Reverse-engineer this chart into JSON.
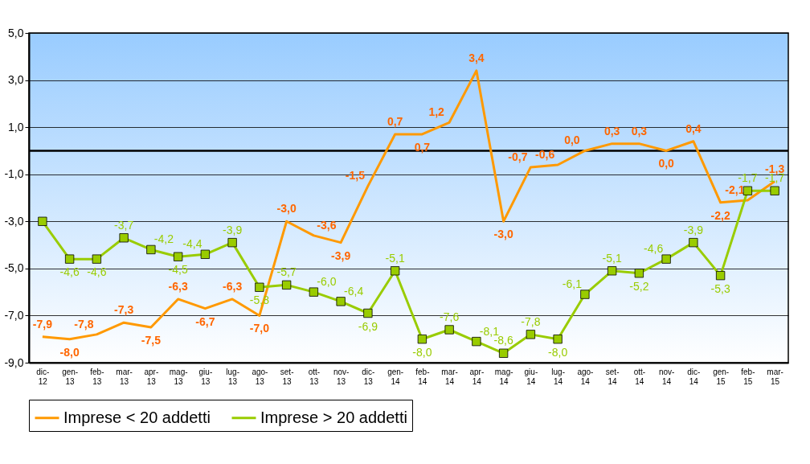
{
  "chart_data": {
    "type": "line",
    "categories": [
      "dic-12",
      "gen-13",
      "feb-13",
      "mar-13",
      "apr-13",
      "mag-13",
      "giu-13",
      "lug-13",
      "ago-13",
      "set-13",
      "ott-13",
      "nov-13",
      "dic-13",
      "gen-14",
      "feb-14",
      "mar-14",
      "apr-14",
      "mag-14",
      "giu-14",
      "lug-14",
      "ago-14",
      "set-14",
      "ott-14",
      "nov-14",
      "dic-14",
      "gen-15",
      "feb-15",
      "mar-15"
    ],
    "series": [
      {
        "name": "Imprese < 20 addetti",
        "color": "#ff9900",
        "marker": "none",
        "values": [
          -7.9,
          -8.0,
          -7.8,
          -7.3,
          -7.5,
          -6.3,
          -6.7,
          -6.3,
          -7.0,
          -3.0,
          -3.6,
          -3.9,
          -1.5,
          0.7,
          0.7,
          1.2,
          3.4,
          -3.0,
          -0.7,
          -0.6,
          0.0,
          0.3,
          0.3,
          0.0,
          0.4,
          -2.2,
          -2.1,
          -1.3
        ],
        "value_labels": [
          "-7,9",
          "-8,0",
          "-7,8",
          "-7,3",
          "-7,5",
          "-6,3",
          "-6,7",
          "-6,3",
          "-7,0",
          "-3,0",
          "-3,6",
          "-3,9",
          "-1,5",
          "0,7",
          "0,7",
          "1,2",
          "3,4",
          "-3,0",
          "-0,7",
          "-0,6",
          "0,0",
          "0,3",
          "0,3",
          "0,0",
          "0,4",
          "-2,2",
          "-2,1",
          "-1,3"
        ]
      },
      {
        "name": "Imprese > 20 addetti",
        "color": "#99cc00",
        "marker": "square",
        "values": [
          -3.0,
          -4.6,
          -4.6,
          -3.7,
          -4.2,
          -4.5,
          -4.4,
          -3.9,
          -5.8,
          -5.7,
          -6.0,
          -6.4,
          -6.9,
          -5.1,
          -8.0,
          -7.6,
          -8.1,
          -8.6,
          -7.8,
          -8.0,
          -6.1,
          -5.1,
          -5.2,
          -4.6,
          -3.9,
          -5.3,
          -1.7,
          -1.7
        ],
        "value_labels": [
          null,
          "-4,6",
          "-4,6",
          "-3,7",
          "-4,2",
          "-4,5",
          "-4,4",
          "-3,9",
          "-5,8",
          "-5,7",
          "-6,0",
          "-6,4",
          "-6,9",
          "-5,1",
          "-8,0",
          "-7,6",
          "-8,1",
          "-8,6",
          "-7,8",
          "-8,0",
          "-6,1",
          "-5,1",
          "-5,2",
          "-4,6",
          "-3,9",
          "-5,3",
          "-1,7",
          "-1,7"
        ]
      }
    ],
    "ylim": [
      -9,
      5
    ],
    "yticks": [
      {
        "value": -9,
        "label": "-9,0"
      },
      {
        "value": -7,
        "label": "-7,0"
      },
      {
        "value": -5,
        "label": "-5,0"
      },
      {
        "value": -3,
        "label": "-3,0"
      },
      {
        "value": -1,
        "label": "-1,0"
      },
      {
        "value": 1,
        "label": "1,0"
      },
      {
        "value": 3,
        "label": "3,0"
      },
      {
        "value": 5,
        "label": "5,0"
      }
    ],
    "ref_lines": [
      {
        "axis": "y",
        "value": 0
      }
    ],
    "grid": "y",
    "legend": "bottom"
  }
}
